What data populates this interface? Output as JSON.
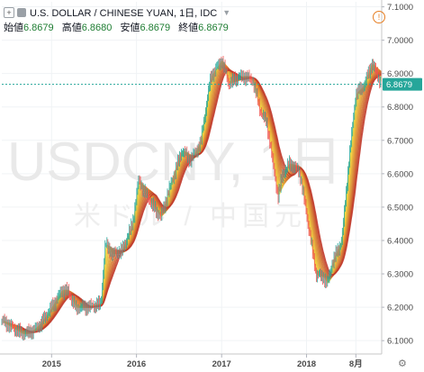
{
  "header": {
    "symbol": "U.S. DOLLAR / CHINESE YUAN, 1日, IDC",
    "open_label": "始値",
    "open_value": "6.8679",
    "high_label": "高値",
    "high_value": "6.8680",
    "low_label": "安値",
    "low_value": "6.8679",
    "close_label": "終値",
    "close_value": "6.8679"
  },
  "watermark": {
    "main": "USDCNY, 1日",
    "sub": "米ドル / 中国元"
  },
  "price_badge": "6.8679",
  "colors": {
    "up": "#26a69a",
    "down": "#ef5350",
    "ribbon_outer": "#f5e03a",
    "ribbon_inner": "#c0392b",
    "price_line": "#26a69a"
  },
  "chart_data": {
    "type": "candlestick",
    "title": "U.S. DOLLAR / CHINESE YUAN, 1日, IDC",
    "x_ticks": [
      "2015",
      "2016",
      "2017",
      "2018",
      "8月"
    ],
    "y_ticks": [
      "7.1000",
      "7.0000",
      "6.9000",
      "6.8000",
      "6.7000",
      "6.6000",
      "6.5000",
      "6.4000",
      "6.3000",
      "6.2000",
      "6.1000"
    ],
    "ylim": [
      6.06,
      7.115
    ],
    "xlim": [
      "2014-06-01",
      "2018-11-20"
    ],
    "grid": true,
    "last_price": 6.8679,
    "series": [
      {
        "name": "USDCNY",
        "points": [
          [
            "2014-06-01",
            6.16
          ],
          [
            "2014-07-15",
            6.14
          ],
          [
            "2014-09-01",
            6.12
          ],
          [
            "2014-10-15",
            6.13
          ],
          [
            "2014-11-15",
            6.15
          ],
          [
            "2015-01-01",
            6.2
          ],
          [
            "2015-02-15",
            6.25
          ],
          [
            "2015-03-10",
            6.25
          ],
          [
            "2015-04-15",
            6.2
          ],
          [
            "2015-06-01",
            6.2
          ],
          [
            "2015-08-01",
            6.21
          ],
          [
            "2015-08-20",
            6.39
          ],
          [
            "2015-09-20",
            6.36
          ],
          [
            "2015-11-01",
            6.37
          ],
          [
            "2015-12-15",
            6.45
          ],
          [
            "2016-01-10",
            6.58
          ],
          [
            "2016-02-01",
            6.55
          ],
          [
            "2016-03-15",
            6.5
          ],
          [
            "2016-04-15",
            6.47
          ],
          [
            "2016-06-01",
            6.58
          ],
          [
            "2016-07-15",
            6.67
          ],
          [
            "2016-08-20",
            6.64
          ],
          [
            "2016-10-01",
            6.69
          ],
          [
            "2016-11-15",
            6.89
          ],
          [
            "2017-01-01",
            6.94
          ],
          [
            "2017-02-01",
            6.87
          ],
          [
            "2017-03-15",
            6.89
          ],
          [
            "2017-04-15",
            6.89
          ],
          [
            "2017-05-15",
            6.88
          ],
          [
            "2017-06-15",
            6.79
          ],
          [
            "2017-07-15",
            6.75
          ],
          [
            "2017-09-01",
            6.53
          ],
          [
            "2017-09-20",
            6.6
          ],
          [
            "2017-10-20",
            6.63
          ],
          [
            "2017-12-01",
            6.61
          ],
          [
            "2018-01-01",
            6.48
          ],
          [
            "2018-02-10",
            6.3
          ],
          [
            "2018-03-15",
            6.29
          ],
          [
            "2018-04-01",
            6.27
          ],
          [
            "2018-04-20",
            6.33
          ],
          [
            "2018-06-01",
            6.4
          ],
          [
            "2018-07-01",
            6.63
          ],
          [
            "2018-08-01",
            6.84
          ],
          [
            "2018-09-01",
            6.86
          ],
          [
            "2018-10-10",
            6.93
          ],
          [
            "2018-11-20",
            6.87
          ]
        ]
      }
    ]
  }
}
